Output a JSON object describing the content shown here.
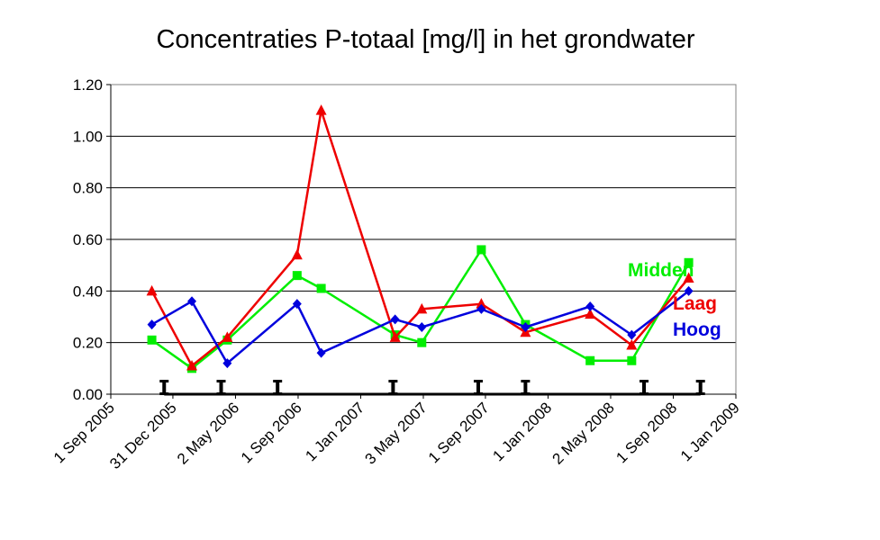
{
  "chart_data": {
    "type": "line",
    "title": "Concentraties P-totaal [mg/l] in het grondwater",
    "xlabel": "",
    "ylabel": "",
    "ylim": [
      0,
      1.2
    ],
    "y_ticks": [
      "0.00",
      "0.20",
      "0.40",
      "0.60",
      "0.80",
      "1.00",
      "1.20"
    ],
    "x_range": [
      "2005-09-01",
      "2009-01-01"
    ],
    "x_tick_dates": [
      "2005-09-01",
      "2005-12-31",
      "2006-05-02",
      "2006-09-01",
      "2007-01-01",
      "2007-05-03",
      "2007-09-01",
      "2008-01-01",
      "2008-05-02",
      "2008-09-01",
      "2009-01-01"
    ],
    "x_tick_labels": [
      "1 Sep 2005",
      "31 Dec 2005",
      "2 May 2006",
      "1 Sep 2006",
      "1 Jan 2007",
      "3 May 2007",
      "1 Sep 2007",
      "1 Jan 2008",
      "2 May 2008",
      "1 Sep 2008",
      "1 Jan 2009"
    ],
    "grid": true,
    "legend": "right",
    "series": [
      {
        "name": "Midden",
        "color": "#00ee00",
        "marker": "square",
        "points": [
          {
            "x": "2005-11-20",
            "y": 0.21
          },
          {
            "x": "2006-02-06",
            "y": 0.1
          },
          {
            "x": "2006-04-16",
            "y": 0.21
          },
          {
            "x": "2006-08-30",
            "y": 0.46
          },
          {
            "x": "2006-10-16",
            "y": 0.41
          },
          {
            "x": "2007-03-09",
            "y": 0.23
          },
          {
            "x": "2007-04-30",
            "y": 0.2
          },
          {
            "x": "2007-08-24",
            "y": 0.56
          },
          {
            "x": "2007-11-18",
            "y": 0.27
          },
          {
            "x": "2008-03-23",
            "y": 0.13
          },
          {
            "x": "2008-06-12",
            "y": 0.13
          },
          {
            "x": "2008-10-01",
            "y": 0.51
          }
        ]
      },
      {
        "name": "Laag",
        "color": "#ee0000",
        "marker": "triangle",
        "points": [
          {
            "x": "2005-11-20",
            "y": 0.4
          },
          {
            "x": "2006-02-06",
            "y": 0.11
          },
          {
            "x": "2006-04-16",
            "y": 0.22
          },
          {
            "x": "2006-08-30",
            "y": 0.54
          },
          {
            "x": "2006-10-16",
            "y": 1.1
          },
          {
            "x": "2007-03-09",
            "y": 0.22
          },
          {
            "x": "2007-04-30",
            "y": 0.33
          },
          {
            "x": "2007-08-24",
            "y": 0.35
          },
          {
            "x": "2007-11-18",
            "y": 0.24
          },
          {
            "x": "2008-03-23",
            "y": 0.31
          },
          {
            "x": "2008-06-12",
            "y": 0.19
          },
          {
            "x": "2008-10-01",
            "y": 0.45
          }
        ]
      },
      {
        "name": "Hoog",
        "color": "#0000dd",
        "marker": "diamond",
        "points": [
          {
            "x": "2005-11-20",
            "y": 0.27
          },
          {
            "x": "2006-02-06",
            "y": 0.36
          },
          {
            "x": "2006-04-16",
            "y": 0.12
          },
          {
            "x": "2006-08-30",
            "y": 0.35
          },
          {
            "x": "2006-10-16",
            "y": 0.16
          },
          {
            "x": "2007-03-09",
            "y": 0.29
          },
          {
            "x": "2007-04-30",
            "y": 0.26
          },
          {
            "x": "2007-08-24",
            "y": 0.33
          },
          {
            "x": "2007-11-18",
            "y": 0.26
          },
          {
            "x": "2008-03-23",
            "y": 0.34
          },
          {
            "x": "2008-06-12",
            "y": 0.23
          },
          {
            "x": "2008-10-01",
            "y": 0.4
          }
        ]
      },
      {
        "name": "",
        "color": "#000000",
        "marker": "bar",
        "points": [
          {
            "x": "2005-12-14",
            "y": 0
          },
          {
            "x": "2006-04-04",
            "y": 0
          },
          {
            "x": "2006-07-23",
            "y": 0
          },
          {
            "x": "2007-03-05",
            "y": 0
          },
          {
            "x": "2007-08-18",
            "y": 0
          },
          {
            "x": "2007-11-18",
            "y": 0
          },
          {
            "x": "2008-07-06",
            "y": 0
          },
          {
            "x": "2008-10-24",
            "y": 0
          }
        ]
      }
    ]
  }
}
